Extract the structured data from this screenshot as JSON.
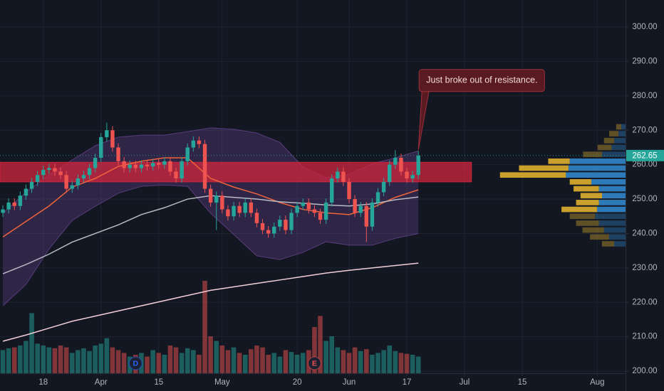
{
  "chart_data": {
    "type": "candlestick",
    "xlim": [
      -0.5,
      107.9
    ],
    "xticks": [
      {
        "value": 7,
        "label": "18"
      },
      {
        "value": 17,
        "label": "Apr"
      },
      {
        "value": 27,
        "label": "15"
      },
      {
        "value": 38,
        "label": "May"
      },
      {
        "value": 51,
        "label": "20"
      },
      {
        "value": 60,
        "label": "Jun"
      },
      {
        "value": 70,
        "label": "17"
      },
      {
        "value": 80,
        "label": "Jul"
      },
      {
        "value": 90,
        "label": "15"
      },
      {
        "value": 103,
        "label": "Aug"
      }
    ],
    "ylim": [
      199.4,
      307.85
    ],
    "yticks": [
      {
        "value": 200,
        "label": "200.00"
      },
      {
        "value": 210,
        "label": "210.00"
      },
      {
        "value": 220,
        "label": "220.00"
      },
      {
        "value": 230,
        "label": "230.00"
      },
      {
        "value": 240,
        "label": "240.00"
      },
      {
        "value": 250,
        "label": "250.00"
      },
      {
        "value": 260,
        "label": "260.00"
      },
      {
        "value": 270,
        "label": "270.00"
      },
      {
        "value": 280,
        "label": "280.00"
      },
      {
        "value": 290,
        "label": "290.00"
      },
      {
        "value": 300,
        "label": "300.00"
      }
    ],
    "grid": true,
    "up_color": "#26a69a",
    "down_color": "#ef5350",
    "candles": {
      "open": [
        246,
        247,
        249,
        248,
        251,
        253,
        255,
        257,
        258.5,
        259,
        258,
        257,
        253,
        254,
        256,
        257,
        259,
        262,
        268,
        270,
        265,
        261,
        259,
        260,
        259,
        260,
        259.5,
        260.5,
        260,
        261,
        258,
        256,
        261,
        265,
        267,
        266,
        253,
        249,
        251,
        247,
        245,
        248,
        246,
        249,
        246,
        243,
        241,
        240,
        242,
        244,
        241,
        246,
        248,
        249,
        247,
        246,
        244,
        249,
        256,
        258,
        255,
        250,
        246,
        248,
        242,
        249,
        252,
        255,
        260,
        262,
        258,
        256,
        257
      ],
      "high": [
        248.2,
        250.2,
        250.2,
        252.2,
        254.2,
        256.2,
        258.2,
        259.7,
        260.2,
        260.2,
        259.2,
        258.2,
        255.2,
        257.2,
        258.2,
        260.2,
        263.2,
        269.2,
        272.2,
        271.2,
        266.2,
        262.2,
        261.2,
        261.2,
        261.2,
        261.2,
        261.7,
        261.7,
        262.2,
        262.2,
        259.2,
        262.2,
        266.2,
        268.2,
        268.2,
        267.2,
        254.2,
        252.2,
        252.2,
        248.2,
        249.2,
        249.2,
        250.2,
        250.2,
        247.2,
        244.2,
        242.2,
        243.2,
        245.2,
        245.2,
        247.2,
        249.2,
        250.2,
        250.2,
        248.2,
        247.2,
        250.2,
        257.2,
        259.2,
        259.2,
        256.2,
        251.2,
        249.2,
        249.2,
        250.2,
        253.2,
        256.2,
        261.2,
        264.2,
        263.2,
        259.2,
        258.2,
        264
      ],
      "low": [
        244.8,
        245.8,
        246.8,
        246.8,
        249.8,
        251.8,
        253.8,
        255.8,
        257.3,
        256.8,
        255.8,
        251.8,
        251.8,
        252.8,
        254.8,
        255.8,
        257.8,
        260.8,
        266.8,
        263.8,
        259.8,
        257.8,
        257.8,
        257.8,
        257.8,
        258.3,
        258.3,
        258.8,
        258.8,
        256.8,
        254.8,
        254.8,
        259.8,
        263.8,
        264.8,
        251.8,
        247.8,
        241,
        245.8,
        243.8,
        243.8,
        244.8,
        244.8,
        244.8,
        241.8,
        239.8,
        238.8,
        238.8,
        240.8,
        239.8,
        239.8,
        244.8,
        246.8,
        245.8,
        244.8,
        242.8,
        242.8,
        247.8,
        254.8,
        253.8,
        248.8,
        244.8,
        244.8,
        237.5,
        240.8,
        247.8,
        250.8,
        253.8,
        258.8,
        256.8,
        254.8,
        254.8,
        255.8
      ],
      "close": [
        247,
        249,
        248,
        251,
        253,
        255,
        257,
        258.5,
        259,
        258,
        257,
        253,
        254,
        256,
        257,
        259,
        262,
        268,
        270,
        265,
        261,
        259,
        260,
        259,
        260,
        259.5,
        260.5,
        260,
        261,
        258,
        256,
        261,
        265,
        267,
        266,
        253,
        249,
        251,
        247,
        245,
        248,
        246,
        249,
        246,
        243,
        241,
        240,
        242,
        244,
        241,
        246,
        248,
        249,
        247,
        246,
        244,
        249,
        256,
        258,
        255,
        250,
        246,
        248,
        242,
        249,
        252,
        255,
        260,
        262,
        258,
        256,
        257,
        262.65
      ],
      "volume": [
        25,
        27,
        28,
        30,
        35,
        65,
        32,
        30,
        28,
        27,
        30,
        28,
        22,
        25,
        27,
        24,
        30,
        32,
        38,
        28,
        25,
        22,
        18,
        20,
        22,
        18,
        25,
        22,
        20,
        30,
        28,
        22,
        27,
        25,
        20,
        100,
        40,
        35,
        30,
        25,
        28,
        22,
        20,
        26,
        30,
        28,
        20,
        22,
        18,
        25,
        23,
        20,
        22,
        25,
        50,
        62,
        35,
        40,
        28,
        25,
        22,
        28,
        24,
        26,
        20,
        22,
        25,
        30,
        24,
        22,
        21,
        20,
        18
      ]
    },
    "vlim": [
      0,
      100
    ],
    "indicator_x": [
      0,
      4,
      8,
      12,
      16,
      20,
      24,
      28,
      32,
      36,
      40,
      44,
      48,
      52,
      56,
      60,
      64,
      68,
      72
    ],
    "lines": [
      {
        "color": "#f0643c",
        "values": [
          239,
          243.5,
          248,
          253.5,
          256,
          259.5,
          261,
          262,
          262,
          256,
          253.5,
          251.5,
          249,
          247,
          246,
          245.5,
          247.5,
          250.5,
          252.7
        ]
      },
      {
        "color": "#b8bbc4",
        "values": [
          228.3,
          231,
          234,
          237.5,
          240,
          242.5,
          245.5,
          247.5,
          250,
          251,
          250.5,
          250,
          249.2,
          248.8,
          248.3,
          248,
          248.6,
          249.8,
          250.6
        ]
      },
      {
        "color": "#f3cfd8",
        "values": [
          208.7,
          210.5,
          212.5,
          214.5,
          216,
          217.5,
          219,
          220.5,
          222,
          223.5,
          224.5,
          225.5,
          226.5,
          227.5,
          228.5,
          229.3,
          230,
          230.7,
          231.4
        ]
      }
    ],
    "bands": {
      "color": "#7b4fa8",
      "upper": [
        245.9,
        252,
        257,
        261.4,
        265.5,
        268,
        268.6,
        268.6,
        269.6,
        270.7,
        270.3,
        269.2,
        266.5,
        259.3,
        256.2,
        257.2,
        260.3,
        262,
        264
      ],
      "lower": [
        219,
        225.2,
        235.5,
        243.8,
        247.9,
        251.7,
        253.7,
        254.1,
        253.7,
        245.9,
        239.7,
        233.5,
        232.4,
        234.5,
        237.6,
        236.6,
        236.6,
        238.6,
        240
      ]
    },
    "zone": {
      "low": 255,
      "high": 260.7,
      "x": [
        -0.5,
        81.2
      ],
      "color": "#d7263d"
    },
    "annotation": {
      "text": "Just broke out of resistance.",
      "x": 72,
      "y": 262.65
    },
    "events": [
      {
        "x": 23,
        "label": "D",
        "color": "#2962ff"
      },
      {
        "x": 54,
        "label": "E",
        "color": "#ef5350"
      }
    ],
    "profile": {
      "bins": [
        236,
        238,
        240,
        242,
        244,
        246,
        248,
        250,
        252,
        254,
        256,
        258,
        260,
        262,
        264,
        266,
        268,
        270,
        272
      ],
      "up": [
        9,
        13,
        17,
        21,
        24,
        22.5,
        21,
        18.5,
        21,
        27,
        47,
        45,
        44,
        18.5,
        11,
        9,
        5.6,
        3.4
      ],
      "down": [
        9.6,
        15,
        17,
        18,
        20,
        28,
        18,
        17,
        20,
        17,
        52,
        39,
        17,
        15,
        11,
        8,
        7.3,
        4
      ],
      "value_area": [
        246,
        262
      ],
      "up_color": "#2f7fc1",
      "down_color": "#d4a72c",
      "lim": [
        0,
        100
      ]
    }
  }
}
